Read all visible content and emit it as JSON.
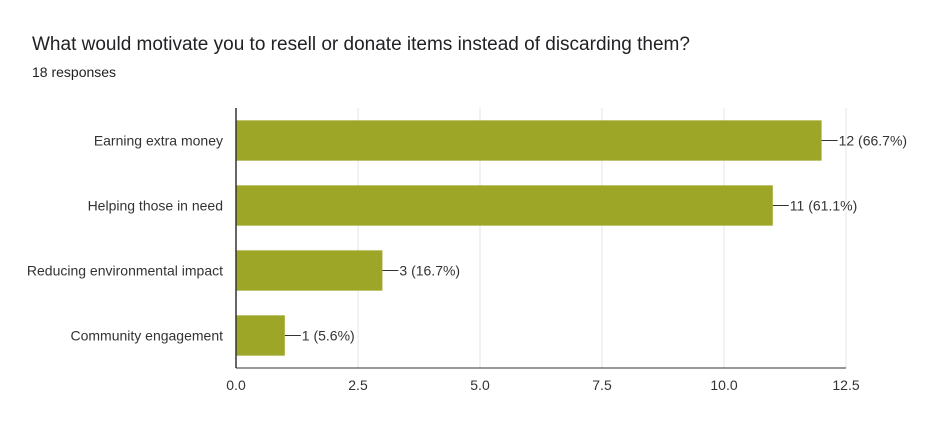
{
  "header": {
    "title": "What would motivate you to resell or donate items instead of discarding them?",
    "subtitle": "18 responses"
  },
  "colors": {
    "bar": "#9ea628",
    "grid": "#e5e5e5",
    "axis": "#333333",
    "text": "#333333"
  },
  "chart_data": {
    "type": "bar",
    "orientation": "horizontal",
    "title": "What would motivate you to resell or donate items instead of discarding them?",
    "subtitle": "18 responses",
    "categories": [
      "Earning extra money",
      "Helping those in need",
      "Reducing environmental impact",
      "Community engagement"
    ],
    "values": [
      12,
      11,
      3,
      1
    ],
    "data_labels": [
      "12 (66.7%)",
      "11 (61.1%)",
      "3 (16.7%)",
      "1 (5.6%)"
    ],
    "xlim": [
      0,
      12.5
    ],
    "xticks": [
      0,
      2.5,
      5,
      7.5,
      10,
      12.5
    ],
    "xtick_labels": [
      "0.0",
      "2.5",
      "5.0",
      "7.5",
      "10.0",
      "12.5"
    ],
    "grid": true,
    "legend": "none"
  }
}
